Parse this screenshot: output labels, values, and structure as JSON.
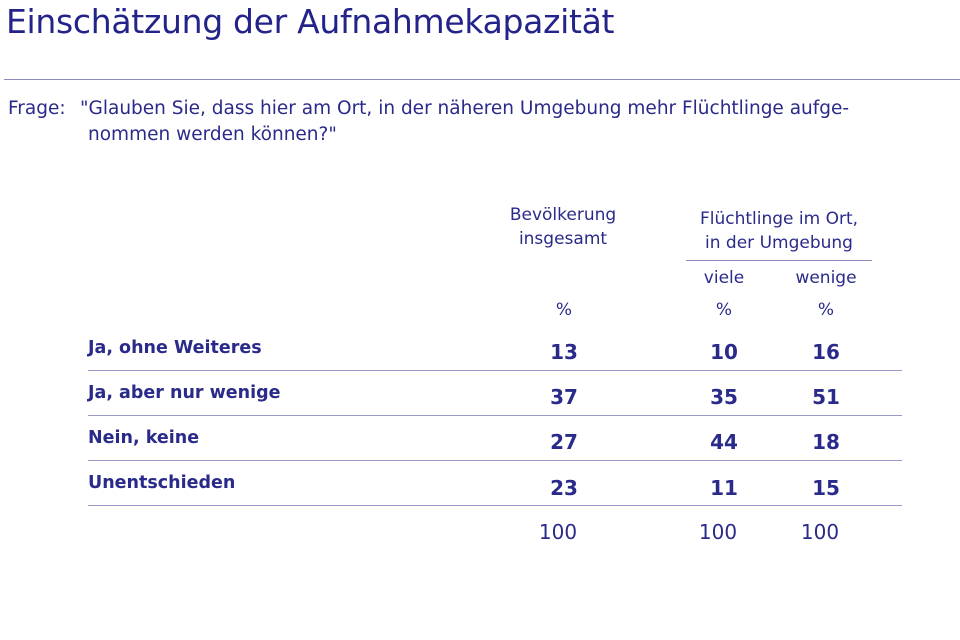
{
  "title": "Einschätzung der Aufnahmekapazität",
  "question": {
    "label": "Frage:",
    "line1": "\"Glauben Sie, dass hier am Ort, in der näheren Umgebung mehr Flüchtlinge aufge-",
    "line2": "nommen werden können?\""
  },
  "chart_data": {
    "type": "table",
    "title": "Einschätzung der Aufnahmekapazität",
    "column_groups": [
      {
        "label_lines": [
          "Bevölkerung",
          "insgesamt"
        ],
        "columns": [
          ""
        ]
      },
      {
        "label_lines": [
          "Flüchtlinge im Ort,",
          "in der Umgebung"
        ],
        "columns": [
          "viele",
          "wenige"
        ]
      }
    ],
    "unit_row": [
      "%",
      "%",
      "%"
    ],
    "rows": [
      {
        "label": "Ja, ohne Weiteres",
        "values": [
          13,
          10,
          16
        ]
      },
      {
        "label": "Ja, aber nur wenige",
        "values": [
          37,
          35,
          51
        ]
      },
      {
        "label": "Nein, keine",
        "values": [
          27,
          44,
          18
        ]
      },
      {
        "label": "Unentschieden",
        "values": [
          23,
          11,
          15
        ]
      }
    ],
    "totals": [
      100,
      100,
      100
    ]
  }
}
